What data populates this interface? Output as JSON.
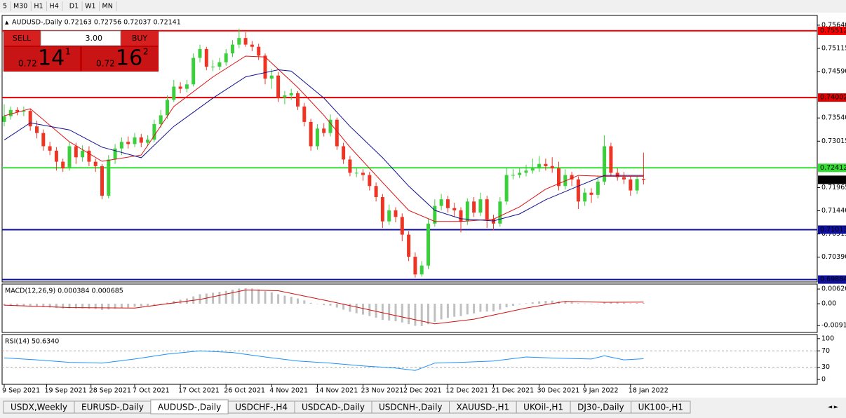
{
  "toolbar": [
    "5",
    "M30",
    "H1",
    "H4",
    "D1",
    "W1",
    "MN"
  ],
  "trade_panel": {
    "sell": "SELL",
    "buy": "BUY",
    "lots": "3.00",
    "bid": {
      "prefix": "0.72",
      "big": "14",
      "pip": "1"
    },
    "ask": {
      "prefix": "0.72",
      "big": "16",
      "pip": "2"
    }
  },
  "tabs": {
    "items": [
      "USDX,Weekly",
      "EURUSD-,Daily",
      "AUDUSD-,Daily",
      "USDCHF-,H4",
      "USDCAD-,Daily",
      "USDCNH-,Daily",
      "XAUUSD-,H1",
      "UKOil-,H1",
      "DJ30-,Daily",
      "UK100-,H1"
    ],
    "active": 2
  },
  "chart_data": [
    {
      "type": "candlestick",
      "title": "AUDUSD-,Daily  0.72163 0.72756 0.72037 0.72141",
      "up_color": "#3ccf3c",
      "down_color": "#ee3524",
      "ylim": [
        0.6983,
        0.7586
      ],
      "yticks": [
        {
          "value": 0.7564,
          "label": "0.75640"
        },
        0.75115,
        {
          "value": 0.7459,
          "label": "0.74590"
        },
        {
          "value": 0.7354,
          "label": "0.73540"
        },
        0.73015,
        0.71965,
        {
          "value": 0.7144,
          "label": "0.71440"
        },
        0.70915,
        {
          "value": 0.7039,
          "label": "0.70390"
        }
      ],
      "xticks": [
        {
          "value": 0,
          "label": "9 Sep 2021"
        },
        {
          "value": 6.5,
          "label": "19 Sep 2021"
        },
        {
          "value": 13.3,
          "label": "28 Sep 2021"
        },
        {
          "value": 20,
          "label": "7 Oct 2021"
        },
        {
          "value": 27,
          "label": "17 Oct 2021"
        },
        {
          "value": 34,
          "label": "26 Oct 2021"
        },
        {
          "value": 41,
          "label": "4 Nov 2021"
        },
        {
          "value": 48,
          "label": "14 Nov 2021"
        },
        {
          "value": 55,
          "label": "23 Nov 2021"
        },
        {
          "value": 61.5,
          "label": "2 Dec 2021"
        },
        {
          "value": 68,
          "label": "12 Dec 2021"
        },
        {
          "value": 75,
          "label": "21 Dec 2021"
        },
        {
          "value": 82,
          "label": "30 Dec 2021"
        },
        {
          "value": 89,
          "label": "9 Jan 2022"
        },
        {
          "value": 96,
          "label": "18 Jan 2022"
        }
      ],
      "levels": [
        {
          "value": 0.75512,
          "color": "#ff0000"
        },
        {
          "value": 0.74002,
          "color": "#e00000"
        },
        {
          "value": 0.72412,
          "color": "#33dd33"
        },
        {
          "value": 0.71013,
          "color": "#1010a0"
        },
        {
          "value": 0.69884,
          "color": "#1010a0"
        }
      ],
      "last_price": 0.72141,
      "candles": [
        [
          0.7345,
          0.7385,
          0.7335,
          0.7358
        ],
        [
          0.7358,
          0.738,
          0.735,
          0.7372
        ],
        [
          0.7372,
          0.7378,
          0.736,
          0.7368
        ],
        [
          0.7368,
          0.738,
          0.7358,
          0.737
        ],
        [
          0.737,
          0.7375,
          0.7325,
          0.7335
        ],
        [
          0.7335,
          0.7348,
          0.7308,
          0.732
        ],
        [
          0.732,
          0.7328,
          0.728,
          0.729
        ],
        [
          0.729,
          0.73,
          0.727,
          0.728
        ],
        [
          0.728,
          0.7288,
          0.7235,
          0.7255
        ],
        [
          0.7255,
          0.7262,
          0.7232,
          0.724
        ],
        [
          0.724,
          0.73,
          0.7235,
          0.729
        ],
        [
          0.729,
          0.7298,
          0.725,
          0.7265
        ],
        [
          0.7265,
          0.7292,
          0.7255,
          0.728
        ],
        [
          0.728,
          0.729,
          0.7245,
          0.7255
        ],
        [
          0.7255,
          0.7262,
          0.7232,
          0.7245
        ],
        [
          0.7245,
          0.725,
          0.717,
          0.7178
        ],
        [
          0.7178,
          0.727,
          0.7172,
          0.726
        ],
        [
          0.726,
          0.7295,
          0.725,
          0.7285
        ],
        [
          0.7285,
          0.731,
          0.727,
          0.73
        ],
        [
          0.73,
          0.7312,
          0.7285,
          0.7295
        ],
        [
          0.7295,
          0.732,
          0.7288,
          0.731
        ],
        [
          0.731,
          0.7318,
          0.7288,
          0.7298
        ],
        [
          0.7298,
          0.7315,
          0.729,
          0.7305
        ],
        [
          0.7305,
          0.735,
          0.73,
          0.734
        ],
        [
          0.734,
          0.7372,
          0.7332,
          0.736
        ],
        [
          0.736,
          0.7405,
          0.7352,
          0.7395
        ],
        [
          0.7395,
          0.744,
          0.739,
          0.7425
        ],
        [
          0.7425,
          0.7435,
          0.741,
          0.742
        ],
        [
          0.742,
          0.744,
          0.7412,
          0.743
        ],
        [
          0.743,
          0.75,
          0.7425,
          0.749
        ],
        [
          0.749,
          0.752,
          0.748,
          0.751
        ],
        [
          0.751,
          0.7515,
          0.7462,
          0.747
        ],
        [
          0.747,
          0.7485,
          0.746,
          0.747
        ],
        [
          0.747,
          0.749,
          0.7462,
          0.748
        ],
        [
          0.748,
          0.751,
          0.7472,
          0.75
        ],
        [
          0.75,
          0.753,
          0.7492,
          0.752
        ],
        [
          0.752,
          0.7556,
          0.7512,
          0.7535
        ],
        [
          0.7535,
          0.7548,
          0.7515,
          0.752
        ],
        [
          0.752,
          0.7528,
          0.7505,
          0.7515
        ],
        [
          0.7515,
          0.7522,
          0.7485,
          0.7495
        ],
        [
          0.7495,
          0.75,
          0.743,
          0.7443
        ],
        [
          0.7443,
          0.7465,
          0.742,
          0.745
        ],
        [
          0.745,
          0.7458,
          0.739,
          0.74
        ],
        [
          0.74,
          0.7415,
          0.7385,
          0.7405
        ],
        [
          0.7405,
          0.742,
          0.7395,
          0.741
        ],
        [
          0.741,
          0.7415,
          0.7372,
          0.738
        ],
        [
          0.738,
          0.7388,
          0.7335,
          0.7345
        ],
        [
          0.7345,
          0.7352,
          0.728,
          0.729
        ],
        [
          0.729,
          0.734,
          0.7282,
          0.733
        ],
        [
          0.733,
          0.7342,
          0.7312,
          0.732
        ],
        [
          0.732,
          0.7362,
          0.7312,
          0.735
        ],
        [
          0.735,
          0.7355,
          0.7282,
          0.729
        ],
        [
          0.729,
          0.7298,
          0.725,
          0.726
        ],
        [
          0.726,
          0.7268,
          0.7222,
          0.723
        ],
        [
          0.723,
          0.7242,
          0.722,
          0.723
        ],
        [
          0.723,
          0.7238,
          0.7212,
          0.7225
        ],
        [
          0.7225,
          0.7232,
          0.719,
          0.72
        ],
        [
          0.72,
          0.7208,
          0.7165,
          0.7175
        ],
        [
          0.7175,
          0.7182,
          0.7105,
          0.712
        ],
        [
          0.712,
          0.7158,
          0.7112,
          0.7145
        ],
        [
          0.7145,
          0.7152,
          0.7118,
          0.713
        ],
        [
          0.713,
          0.7138,
          0.7075,
          0.709
        ],
        [
          0.709,
          0.7098,
          0.703,
          0.704
        ],
        [
          0.704,
          0.705,
          0.6993,
          0.7
        ],
        [
          0.7,
          0.703,
          0.6995,
          0.702
        ],
        [
          0.702,
          0.7125,
          0.7012,
          0.7115
        ],
        [
          0.7115,
          0.717,
          0.7108,
          0.7155
        ],
        [
          0.7155,
          0.7182,
          0.7145,
          0.717
        ],
        [
          0.717,
          0.7178,
          0.714,
          0.715
        ],
        [
          0.715,
          0.7162,
          0.713,
          0.7145
        ],
        [
          0.7145,
          0.7152,
          0.7095,
          0.712
        ],
        [
          0.712,
          0.7172,
          0.7112,
          0.7165
        ],
        [
          0.7165,
          0.7175,
          0.713,
          0.714
        ],
        [
          0.714,
          0.7185,
          0.7132,
          0.717
        ],
        [
          0.717,
          0.7178,
          0.7105,
          0.7125
        ],
        [
          0.7125,
          0.7135,
          0.71,
          0.7115
        ],
        [
          0.7115,
          0.7175,
          0.7108,
          0.7165
        ],
        [
          0.7165,
          0.724,
          0.7158,
          0.7225
        ],
        [
          0.7225,
          0.7238,
          0.7215,
          0.7225
        ],
        [
          0.7225,
          0.7242,
          0.7218,
          0.723
        ],
        [
          0.723,
          0.7248,
          0.7222,
          0.7235
        ],
        [
          0.7235,
          0.7262,
          0.7228,
          0.724
        ],
        [
          0.724,
          0.7268,
          0.7232,
          0.725
        ],
        [
          0.725,
          0.7262,
          0.7235,
          0.7245
        ],
        [
          0.7245,
          0.7265,
          0.723,
          0.724
        ],
        [
          0.724,
          0.7255,
          0.719,
          0.72
        ],
        [
          0.72,
          0.7238,
          0.7192,
          0.7225
        ],
        [
          0.7225,
          0.7232,
          0.72,
          0.7215
        ],
        [
          0.7215,
          0.7222,
          0.7148,
          0.7165
        ],
        [
          0.7165,
          0.7195,
          0.7155,
          0.7185
        ],
        [
          0.7185,
          0.7195,
          0.7162,
          0.718
        ],
        [
          0.718,
          0.7222,
          0.7172,
          0.721
        ],
        [
          0.721,
          0.7315,
          0.7202,
          0.729
        ],
        [
          0.729,
          0.7298,
          0.7222,
          0.723
        ],
        [
          0.723,
          0.724,
          0.7212,
          0.722
        ],
        [
          0.722,
          0.7232,
          0.7205,
          0.7215
        ],
        [
          0.7215,
          0.7222,
          0.7178,
          0.719
        ],
        [
          0.719,
          0.7222,
          0.7182,
          0.7216
        ],
        [
          0.72163,
          0.72756,
          0.72037,
          0.72141
        ]
      ],
      "series": [
        {
          "color": "#e01010",
          "x": [
            0,
            4,
            10,
            15,
            21,
            26,
            32,
            37,
            40,
            45,
            49,
            53,
            58,
            62,
            66,
            70,
            75,
            79,
            83,
            88,
            92,
            98
          ],
          "values": [
            0.7359,
            0.7375,
            0.73,
            0.7256,
            0.727,
            0.738,
            0.7447,
            0.7494,
            0.7492,
            0.7423,
            0.736,
            0.7288,
            0.7208,
            0.7145,
            0.712,
            0.712,
            0.7125,
            0.7153,
            0.7193,
            0.7224,
            0.7222,
            0.7222
          ]
        },
        {
          "color": "#101090",
          "x": [
            0,
            4,
            10,
            15,
            21,
            26,
            32,
            37,
            42,
            44,
            49,
            53,
            58,
            62,
            66,
            70,
            75,
            79,
            83,
            88,
            92,
            98
          ],
          "values": [
            0.7304,
            0.7343,
            0.7327,
            0.7288,
            0.7264,
            0.7335,
            0.7399,
            0.7447,
            0.7463,
            0.746,
            0.7399,
            0.7335,
            0.7264,
            0.72,
            0.7145,
            0.7126,
            0.7121,
            0.7137,
            0.7169,
            0.72,
            0.7224,
            0.7224
          ]
        }
      ]
    },
    {
      "type": "bar",
      "title": "MACD(12,26,9) 0.000384 0.000685",
      "color": "#c0c0c0",
      "ylim": [
        -0.0121,
        0.0083
      ],
      "yticks": [
        0.006201,
        {
          "value": 0,
          "label": "0.00"
        },
        -0.00919
      ],
      "values": [
        -0.0008,
        -0.0009,
        -0.001,
        -0.001,
        -0.0011,
        -0.0012,
        -0.0014,
        -0.0016,
        -0.0018,
        -0.002,
        -0.0019,
        -0.002,
        -0.002,
        -0.0021,
        -0.0022,
        -0.0026,
        -0.0024,
        -0.0021,
        -0.0018,
        -0.0016,
        -0.0013,
        -0.0011,
        -0.0009,
        -0.0005,
        -0.0001,
        0.0005,
        0.0012,
        0.0017,
        0.0022,
        0.0031,
        0.004,
        0.0043,
        0.0046,
        0.005,
        0.0054,
        0.0059,
        0.0064,
        0.0065,
        0.0064,
        0.0061,
        0.0053,
        0.0048,
        0.004,
        0.0034,
        0.0029,
        0.0022,
        0.0014,
        0.0004,
        -0.0001,
        -0.0006,
        -0.0008,
        -0.0016,
        -0.0025,
        -0.0034,
        -0.004,
        -0.0046,
        -0.0052,
        -0.0059,
        -0.0068,
        -0.0071,
        -0.0074,
        -0.0079,
        -0.0086,
        -0.0093,
        -0.0094,
        -0.0086,
        -0.0076,
        -0.0066,
        -0.006,
        -0.0055,
        -0.0052,
        -0.0045,
        -0.0041,
        -0.0034,
        -0.0033,
        -0.0032,
        -0.0025,
        -0.0015,
        -0.0009,
        -0.0003,
        0.0002,
        0.0006,
        0.001,
        0.0012,
        0.0013,
        0.001,
        0.0009,
        0.0007,
        0.0002,
        0.0001,
        -0.0001,
        0,
        0.0006,
        0.0006,
        0.0005,
        0.0004,
        0.0002,
        0.0003,
        0.000384
      ],
      "series": [
        {
          "color": "#d01010",
          "x": [
            0,
            10,
            20,
            30,
            37,
            42,
            50,
            60,
            66,
            72,
            80,
            86,
            92,
            98
          ],
          "values": [
            -0.0006,
            -0.0016,
            -0.0018,
            0.0018,
            0.0058,
            0.0055,
            0.001,
            -0.005,
            -0.0085,
            -0.0065,
            -0.0018,
            0.001,
            0.0006,
            0.000685
          ]
        }
      ]
    },
    {
      "type": "line",
      "title": "RSI(14) 50.6340",
      "ylim": [
        -12,
        110
      ],
      "yticks": [
        100,
        70,
        30,
        0
      ],
      "levels": [
        70,
        30
      ],
      "series": [
        {
          "color": "#1e90ff",
          "x": [
            0,
            5,
            10,
            15,
            20,
            25,
            30,
            35,
            40,
            45,
            50,
            55,
            60,
            63,
            66,
            70,
            75,
            80,
            85,
            90,
            92,
            95,
            98
          ],
          "values": [
            53,
            48,
            42,
            40,
            50,
            62,
            70,
            66,
            55,
            45,
            40,
            33,
            28,
            22,
            40,
            42,
            45,
            55,
            52,
            50,
            58,
            48,
            50.634
          ]
        }
      ]
    }
  ]
}
